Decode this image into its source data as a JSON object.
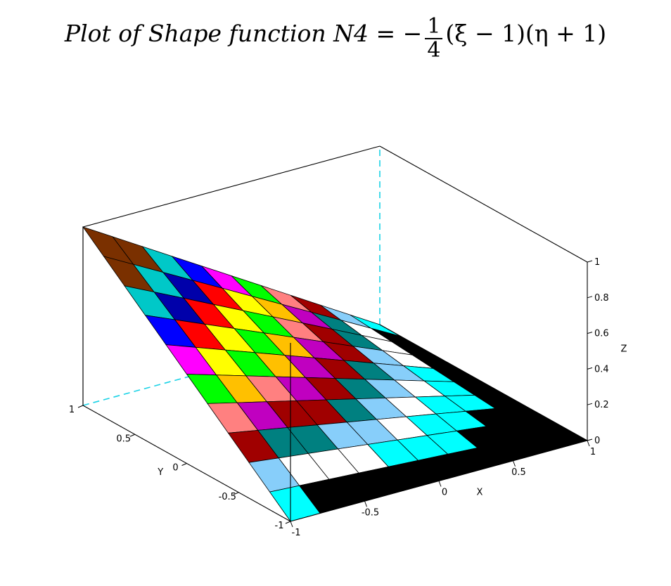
{
  "chart_data": {
    "type": "surface",
    "title": {
      "prefix": "Plot of Shape function N4",
      "equals": " = −",
      "frac_num": "1",
      "frac_den": "4",
      "suffix": "(ξ − 1)(η + 1)"
    },
    "function": "N4 = -1/4 (xi - 1)(eta + 1)",
    "x_range": [
      -1,
      1
    ],
    "y_range": [
      -1,
      1
    ],
    "z_range": [
      0,
      1
    ],
    "grid_n": 10,
    "axes": {
      "x": {
        "label": "X",
        "ticks": [
          "-1",
          "-0.5",
          "0",
          "0.5",
          "1"
        ]
      },
      "y": {
        "label": "Y",
        "ticks": [
          "-1",
          "-0.5",
          "0",
          "0.5",
          "1"
        ]
      },
      "z": {
        "label": "Z",
        "ticks": [
          "0",
          "0.2",
          "0.4",
          "0.6",
          "0.8",
          "1"
        ]
      }
    },
    "facet_colors": [
      "#000000",
      "#00ffff",
      "#ffffff",
      "#87cefa",
      "#008080",
      "#a00000",
      "#c000c0",
      "#ff8080",
      "#ffc000",
      "#00ff00",
      "#ffff00",
      "#ff00ff",
      "#ff0000",
      "#0000ff",
      "#0000aa",
      "#00a000",
      "#00c8c8",
      "#7a3000"
    ]
  }
}
